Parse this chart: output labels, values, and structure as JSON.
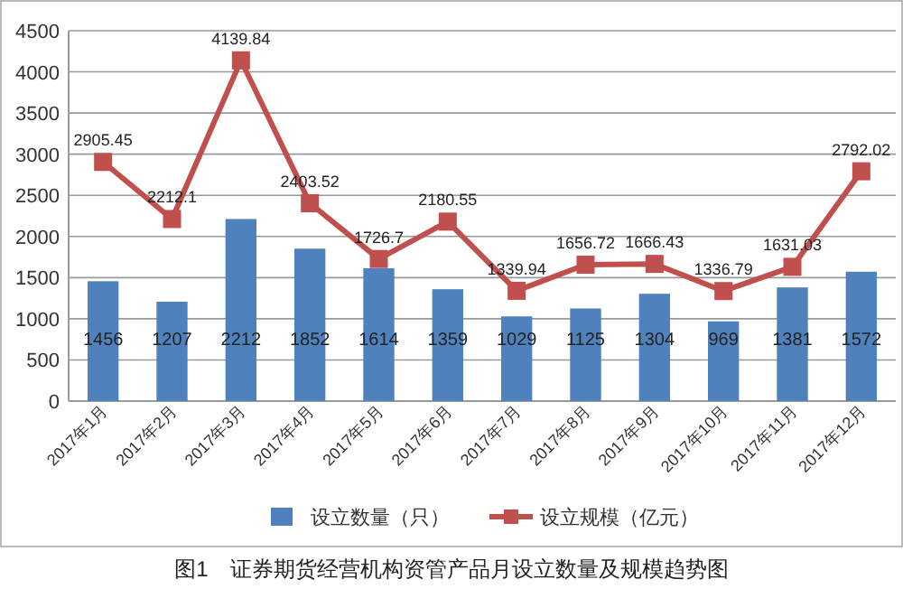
{
  "chart_data": {
    "type": "bar",
    "categories": [
      "2017年1月",
      "2017年2月",
      "2017年3月",
      "2017年4月",
      "2017年5月",
      "2017年6月",
      "2017年7月",
      "2017年8月",
      "2017年9月",
      "2017年10月",
      "2017年11月",
      "2017年12月"
    ],
    "series": [
      {
        "name": "设立数量（只）",
        "color": "#4f81bd",
        "values": [
          1456,
          1207,
          2212,
          1852,
          1614,
          1359,
          1029,
          1125,
          1304,
          969,
          1381,
          1572
        ]
      },
      {
        "name": "设立规模（亿元）",
        "type": "line",
        "color": "#c0504d",
        "marker": "square",
        "values": [
          2905.45,
          2212.1,
          4139.84,
          2403.52,
          1726.7,
          2180.55,
          1339.94,
          1656.72,
          1666.43,
          1336.79,
          1631.03,
          2792.02
        ]
      }
    ],
    "ylim": [
      0,
      4500
    ],
    "yticks": [
      0,
      500,
      1000,
      1500,
      2000,
      2500,
      3000,
      3500,
      4000,
      4500
    ],
    "grid": "y",
    "legend": "bottom",
    "data_labels": true,
    "annotations": [
      "图1　证券期货经营机构资管产品月设立数量及规模趋势图"
    ]
  }
}
